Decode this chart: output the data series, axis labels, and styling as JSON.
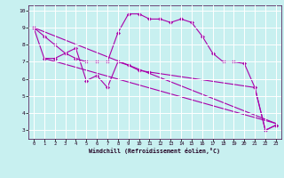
{
  "xlabel": "Windchill (Refroidissement éolien,°C)",
  "background_color": "#c8f0f0",
  "grid_color": "#ffffff",
  "line_color": "#aa00aa",
  "xlim": [
    -0.5,
    23.5
  ],
  "ylim": [
    2.5,
    10.3
  ],
  "yticks": [
    3,
    4,
    5,
    6,
    7,
    8,
    9,
    10
  ],
  "xticks": [
    0,
    1,
    2,
    3,
    4,
    5,
    6,
    7,
    8,
    9,
    10,
    11,
    12,
    13,
    14,
    15,
    16,
    17,
    18,
    19,
    20,
    21,
    22,
    23
  ],
  "curve1_x": [
    0,
    1,
    2,
    3,
    4,
    5,
    6,
    7,
    8,
    9,
    10,
    11,
    12,
    13,
    14,
    15,
    16,
    17,
    18,
    19,
    20,
    21,
    22,
    23
  ],
  "curve1_y": [
    9.0,
    8.5,
    8.0,
    7.5,
    7.2,
    7.0,
    7.0,
    7.0,
    8.7,
    9.8,
    9.8,
    9.5,
    9.5,
    9.3,
    9.5,
    9.3,
    8.5,
    7.5,
    7.0,
    7.0,
    6.9,
    5.5,
    3.0,
    3.3
  ],
  "curve2_x": [
    0,
    1,
    2,
    4,
    5,
    6,
    7,
    8,
    9,
    10,
    11,
    21,
    22,
    23
  ],
  "curve2_y": [
    9.0,
    7.2,
    7.2,
    7.8,
    5.9,
    6.2,
    5.5,
    7.0,
    6.8,
    6.5,
    6.4,
    5.5,
    3.0,
    3.3
  ],
  "line1_x": [
    0,
    23
  ],
  "line1_y": [
    9.0,
    3.4
  ],
  "line2_x": [
    1,
    23
  ],
  "line2_y": [
    7.2,
    3.4
  ]
}
